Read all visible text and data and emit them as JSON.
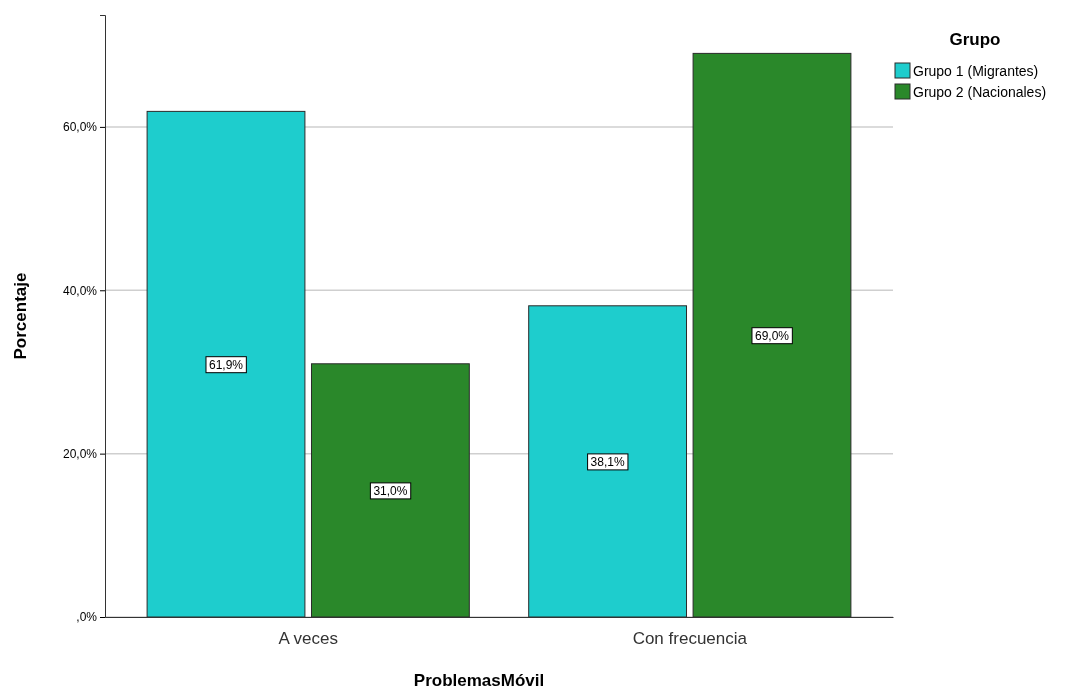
{
  "chart_data": {
    "type": "bar",
    "xlabel": "ProblemasMóvil",
    "ylabel": "Porcentaje",
    "legend_title": "Grupo",
    "categories": [
      "A veces",
      "Con frecuencia"
    ],
    "series": [
      {
        "name": "Grupo 1 (Migrantes)",
        "color": "#1ecdcd",
        "values": [
          61.9,
          38.1
        ],
        "value_labels": [
          "61,9%",
          "38,1%"
        ]
      },
      {
        "name": "Grupo 2 (Nacionales)",
        "color": "#2a882a",
        "values": [
          31.0,
          69.0
        ],
        "value_labels": [
          "31,0%",
          "69,0%"
        ]
      }
    ],
    "ylim": [
      0,
      73.7
    ],
    "yticks": [
      {
        "value": 0,
        "label": ",0%"
      },
      {
        "value": 20,
        "label": "20,0%"
      },
      {
        "value": 40,
        "label": "40,0%"
      },
      {
        "value": 60,
        "label": "60,0%"
      }
    ],
    "grid": "y",
    "legend": "top right"
  }
}
